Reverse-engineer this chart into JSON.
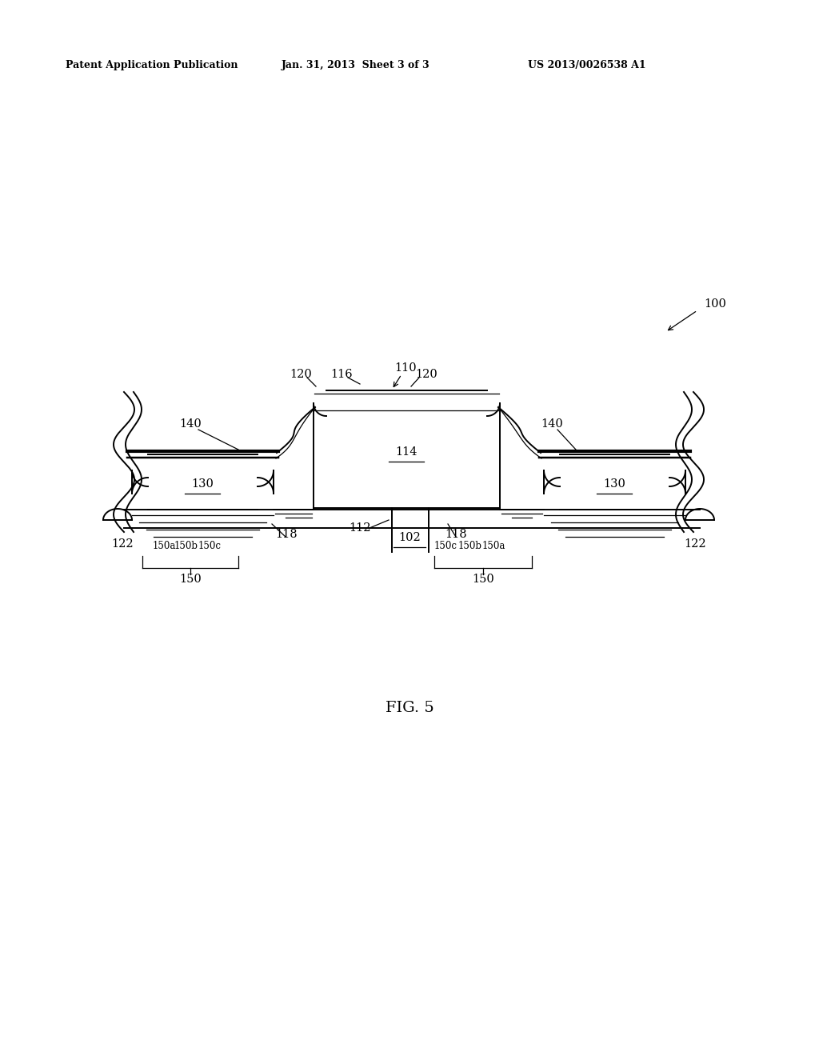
{
  "bg_color": "#ffffff",
  "lc": "#000000",
  "header_pub": "Patent Application Publication",
  "header_date": "Jan. 31, 2013  Sheet 3 of 3",
  "header_num": "US 2013/0026538 A1",
  "fig_label": "FIG. 5"
}
